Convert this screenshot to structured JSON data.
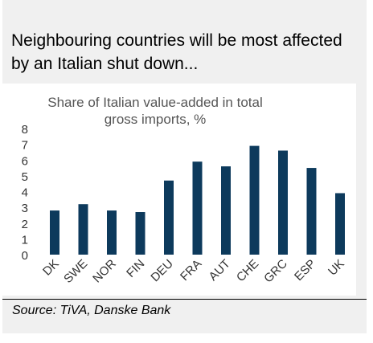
{
  "headline": "Neighbouring countries will be most affected by an Italian shut down...",
  "source": "Source: TiVA, Danske Bank",
  "colors": {
    "bar": "#0d3a5c",
    "axis_text": "#333333",
    "title_text": "#555555",
    "frame": "#f0f0f0"
  },
  "chart_data": {
    "type": "bar",
    "title_lines": [
      "Share of Italian value-added in total",
      "gross imports, %"
    ],
    "categories": [
      "DK",
      "SWE",
      "NOR",
      "FIN",
      "DEU",
      "FRA",
      "AUT",
      "CHE",
      "GRC",
      "ESP",
      "UK"
    ],
    "values": [
      2.8,
      3.2,
      2.8,
      2.7,
      4.7,
      5.9,
      5.6,
      6.9,
      6.6,
      5.5,
      3.9
    ],
    "ylim": [
      0,
      8
    ],
    "yticks": [
      0,
      1,
      2,
      3,
      4,
      5,
      6,
      7,
      8
    ],
    "grid": false,
    "legend": "none"
  }
}
